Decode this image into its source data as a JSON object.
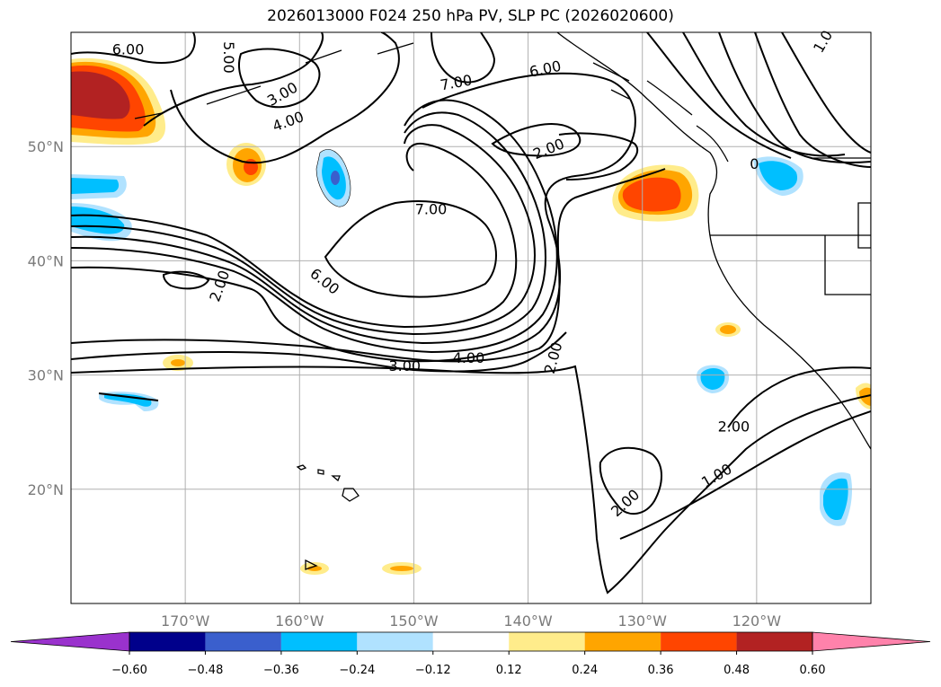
{
  "title": "2026013000 F024 250 hPa PV, SLP PC (2026020600)",
  "map": {
    "lon_range": [
      -180,
      -110
    ],
    "lat_range": [
      10,
      60
    ],
    "lon_ticks": [
      {
        "lon": -170,
        "label": "170°W"
      },
      {
        "lon": -160,
        "label": "160°W"
      },
      {
        "lon": -150,
        "label": "150°W"
      },
      {
        "lon": -140,
        "label": "140°W"
      },
      {
        "lon": -130,
        "label": "130°W"
      },
      {
        "lon": -120,
        "label": "120°W"
      }
    ],
    "lat_ticks": [
      {
        "lat": 50,
        "label": "50°N"
      },
      {
        "lat": 40,
        "label": "40°N"
      },
      {
        "lat": 30,
        "label": "30°N"
      },
      {
        "lat": 20,
        "label": "20°N"
      }
    ],
    "grid": true,
    "contour_labels": [
      {
        "text": "6.00",
        "lon": -175,
        "lat": 58.5,
        "angle": 0
      },
      {
        "text": "5.00",
        "lon": -166.2,
        "lat": 57.8,
        "angle": 90
      },
      {
        "text": "3.00",
        "lon": -161.5,
        "lat": 54.6,
        "angle": -30
      },
      {
        "text": "4.00",
        "lon": -161,
        "lat": 52.2,
        "angle": -20
      },
      {
        "text": "7.00",
        "lon": -146.3,
        "lat": 55.6,
        "angle": -10
      },
      {
        "text": "6.00",
        "lon": -138.5,
        "lat": 56.8,
        "angle": -12
      },
      {
        "text": "2.00",
        "lon": -138.2,
        "lat": 49.8,
        "angle": -22
      },
      {
        "text": "1.0",
        "lon": -114.2,
        "lat": 59.2,
        "angle": -60
      },
      {
        "text": "2.00",
        "lon": -167,
        "lat": 37.8,
        "angle": -70
      },
      {
        "text": "6.00",
        "lon": -157.8,
        "lat": 38.2,
        "angle": 38
      },
      {
        "text": "7.00",
        "lon": -148.5,
        "lat": 44.5,
        "angle": 0
      },
      {
        "text": "3.00",
        "lon": -150.8,
        "lat": 30.8,
        "angle": 0
      },
      {
        "text": "4.00",
        "lon": -145.2,
        "lat": 31.5,
        "angle": 0
      },
      {
        "text": "2.00",
        "lon": -137.8,
        "lat": 31.5,
        "angle": -75
      },
      {
        "text": "2.00",
        "lon": -122,
        "lat": 25.5,
        "angle": 0
      },
      {
        "text": "1.00",
        "lon": -123.5,
        "lat": 21.2,
        "angle": -30
      },
      {
        "text": "2.00",
        "lon": -131.5,
        "lat": 18.8,
        "angle": -42
      },
      {
        "text": "0",
        "lon": -120.2,
        "lat": 48.5,
        "angle": 0
      }
    ]
  },
  "colorbar": {
    "ticks": [
      "−0.60",
      "−0.48",
      "−0.36",
      "−0.24",
      "−0.12",
      "0.12",
      "0.24",
      "0.36",
      "0.48",
      "0.60"
    ],
    "colors": [
      "#9a32cd",
      "#00008b",
      "#3a5fcd",
      "#00bfff",
      "#b0e2ff",
      "#ffffff",
      "#ffec8b",
      "#ffa500",
      "#ff4500",
      "#b22222",
      "#ff82ab",
      "#ff82ab"
    ]
  }
}
